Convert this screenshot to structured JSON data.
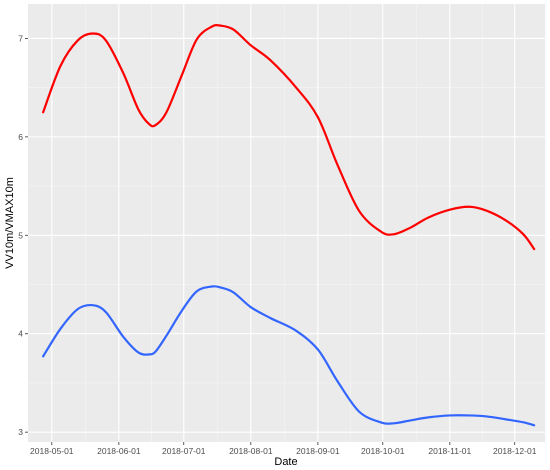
{
  "chart_data": {
    "type": "line",
    "xlabel": "Date",
    "ylabel": "VV10m/VMAX10m",
    "xlim": [
      "2018-04-20",
      "2018-12-15"
    ],
    "ylim": [
      2.9,
      7.35
    ],
    "x_ticks": [
      "2018-05-01",
      "2018-06-01",
      "2018-07-01",
      "2018-08-01",
      "2018-09-01",
      "2018-10-01",
      "2018-11-01",
      "2018-12-01"
    ],
    "y_ticks": [
      3,
      4,
      5,
      6,
      7
    ],
    "grid": true,
    "legend": "none",
    "background": "#ebebeb",
    "series": [
      {
        "color": "#ff0000",
        "x": [
          "2018-04-27",
          "2018-05-05",
          "2018-05-13",
          "2018-05-20",
          "2018-05-26",
          "2018-06-03",
          "2018-06-10",
          "2018-06-15",
          "2018-06-18",
          "2018-06-23",
          "2018-06-30",
          "2018-07-07",
          "2018-07-14",
          "2018-07-18",
          "2018-07-24",
          "2018-08-01",
          "2018-08-10",
          "2018-08-22",
          "2018-09-01",
          "2018-09-10",
          "2018-09-20",
          "2018-09-30",
          "2018-10-06",
          "2018-10-14",
          "2018-10-22",
          "2018-11-01",
          "2018-11-10",
          "2018-11-18",
          "2018-11-27",
          "2018-12-05",
          "2018-12-10"
        ],
        "values": [
          6.25,
          6.72,
          6.98,
          7.05,
          6.98,
          6.65,
          6.28,
          6.13,
          6.12,
          6.25,
          6.62,
          6.99,
          7.12,
          7.13,
          7.09,
          6.93,
          6.78,
          6.5,
          6.2,
          5.72,
          5.25,
          5.04,
          5.01,
          5.08,
          5.18,
          5.26,
          5.29,
          5.25,
          5.15,
          5.01,
          4.86
        ]
      },
      {
        "color": "#3366ff",
        "x": [
          "2018-04-27",
          "2018-05-05",
          "2018-05-13",
          "2018-05-20",
          "2018-05-26",
          "2018-06-03",
          "2018-06-10",
          "2018-06-15",
          "2018-06-18",
          "2018-06-23",
          "2018-06-30",
          "2018-07-07",
          "2018-07-14",
          "2018-07-18",
          "2018-07-24",
          "2018-08-01",
          "2018-08-10",
          "2018-08-22",
          "2018-09-01",
          "2018-09-10",
          "2018-09-20",
          "2018-09-30",
          "2018-10-06",
          "2018-10-14",
          "2018-10-22",
          "2018-11-01",
          "2018-11-10",
          "2018-11-18",
          "2018-11-27",
          "2018-12-05",
          "2018-12-10"
        ],
        "values": [
          3.77,
          4.05,
          4.25,
          4.29,
          4.22,
          3.97,
          3.81,
          3.79,
          3.82,
          3.98,
          4.23,
          4.43,
          4.48,
          4.47,
          4.42,
          4.27,
          4.16,
          4.03,
          3.84,
          3.52,
          3.21,
          3.1,
          3.09,
          3.12,
          3.15,
          3.17,
          3.17,
          3.16,
          3.13,
          3.1,
          3.07
        ]
      }
    ]
  }
}
